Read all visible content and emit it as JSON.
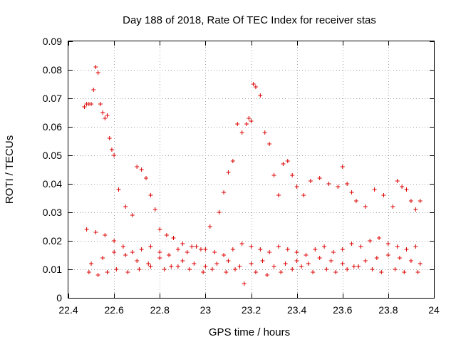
{
  "chart_data": {
    "type": "scatter",
    "title": "Day 188 of 2018, Rate Of TEC Index for receiver stas",
    "xlabel": "GPS time / hours",
    "ylabel": "ROTI / TECUs",
    "xlim": [
      22.4,
      24.0
    ],
    "ylim": [
      0,
      0.09
    ],
    "xticks": [
      22.4,
      22.6,
      22.8,
      23.0,
      23.2,
      23.4,
      23.6,
      23.8,
      24.0
    ],
    "xtick_labels": [
      "22.4",
      "22.6",
      "22.8",
      "23",
      "23.2",
      "23.4",
      "23.6",
      "23.8",
      "24"
    ],
    "yticks": [
      0,
      0.01,
      0.02,
      0.03,
      0.04,
      0.05,
      0.06,
      0.07,
      0.08,
      0.09
    ],
    "ytick_labels": [
      "0",
      "0.01",
      "0.02",
      "0.03",
      "0.04",
      "0.05",
      "0.06",
      "0.07",
      "0.08",
      "0.09"
    ],
    "grid": true,
    "marker": "+",
    "color": "#dd0000",
    "series": [
      {
        "name": "stas",
        "x": [
          22.47,
          22.48,
          22.49,
          22.5,
          22.51,
          22.52,
          22.53,
          22.54,
          22.55,
          22.56,
          22.57,
          22.58,
          22.59,
          22.6,
          22.62,
          22.65,
          22.68,
          22.7,
          22.72,
          22.74,
          22.76,
          22.78,
          22.8,
          22.83,
          22.86,
          22.9,
          22.94,
          22.98,
          23.02,
          23.06,
          23.08,
          23.1,
          23.12,
          23.14,
          23.16,
          23.18,
          23.19,
          23.2,
          23.21,
          23.22,
          23.24,
          23.26,
          23.28,
          23.3,
          23.32,
          23.34,
          23.36,
          23.38,
          23.4,
          23.43,
          23.46,
          23.5,
          23.54,
          23.58,
          23.6,
          23.62,
          23.64,
          23.66,
          23.7,
          23.74,
          23.78,
          23.82,
          23.84,
          23.86,
          23.88,
          23.9,
          23.92,
          23.94,
          22.5,
          22.55,
          22.6,
          22.65,
          22.7,
          22.75,
          22.8,
          22.85,
          22.9,
          22.95,
          23.0,
          23.05,
          23.1,
          23.15,
          23.2,
          23.25,
          23.3,
          23.35,
          23.4,
          23.45,
          23.5,
          23.55,
          23.6,
          23.65,
          23.7,
          23.75,
          23.8,
          23.85,
          23.9,
          23.94,
          22.48,
          22.52,
          22.56,
          22.6,
          22.64,
          22.68,
          22.72,
          22.76,
          22.8,
          22.84,
          22.88,
          22.92,
          22.96,
          23.0,
          23.04,
          23.08,
          23.12,
          23.16,
          23.2,
          23.24,
          23.28,
          23.32,
          23.36,
          23.4,
          23.44,
          23.48,
          23.52,
          23.56,
          23.6,
          23.64,
          23.68,
          23.72,
          23.76,
          23.8,
          23.84,
          23.88,
          23.92,
          22.49,
          22.53,
          22.57,
          22.61,
          22.66,
          22.71,
          22.76,
          22.82,
          22.88,
          22.93,
          22.99,
          23.03,
          23.09,
          23.13,
          23.17,
          23.22,
          23.27,
          23.33,
          23.38,
          23.42,
          23.47,
          23.53,
          23.57,
          23.62,
          23.67,
          23.73,
          23.77,
          23.83,
          23.87,
          23.93
        ],
        "y": [
          0.067,
          0.068,
          0.068,
          0.068,
          0.073,
          0.081,
          0.079,
          0.068,
          0.065,
          0.063,
          0.064,
          0.056,
          0.052,
          0.05,
          0.038,
          0.032,
          0.029,
          0.046,
          0.045,
          0.042,
          0.036,
          0.031,
          0.024,
          0.022,
          0.021,
          0.019,
          0.018,
          0.017,
          0.025,
          0.03,
          0.037,
          0.044,
          0.048,
          0.061,
          0.058,
          0.061,
          0.063,
          0.062,
          0.075,
          0.074,
          0.071,
          0.058,
          0.054,
          0.043,
          0.036,
          0.047,
          0.048,
          0.043,
          0.039,
          0.036,
          0.041,
          0.042,
          0.04,
          0.039,
          0.046,
          0.04,
          0.037,
          0.034,
          0.032,
          0.038,
          0.036,
          0.032,
          0.041,
          0.039,
          0.038,
          0.034,
          0.031,
          0.034,
          0.012,
          0.014,
          0.016,
          0.015,
          0.013,
          0.012,
          0.014,
          0.011,
          0.013,
          0.012,
          0.011,
          0.012,
          0.013,
          0.011,
          0.012,
          0.013,
          0.011,
          0.012,
          0.013,
          0.012,
          0.014,
          0.013,
          0.012,
          0.011,
          0.013,
          0.014,
          0.015,
          0.014,
          0.013,
          0.012,
          0.024,
          0.023,
          0.022,
          0.02,
          0.018,
          0.016,
          0.017,
          0.018,
          0.016,
          0.015,
          0.017,
          0.016,
          0.018,
          0.017,
          0.016,
          0.015,
          0.017,
          0.019,
          0.018,
          0.017,
          0.016,
          0.018,
          0.017,
          0.016,
          0.015,
          0.017,
          0.018,
          0.016,
          0.017,
          0.019,
          0.018,
          0.02,
          0.021,
          0.019,
          0.018,
          0.017,
          0.018,
          0.009,
          0.008,
          0.009,
          0.01,
          0.009,
          0.01,
          0.011,
          0.01,
          0.011,
          0.01,
          0.009,
          0.01,
          0.009,
          0.01,
          0.005,
          0.009,
          0.008,
          0.009,
          0.01,
          0.011,
          0.009,
          0.01,
          0.009,
          0.01,
          0.011,
          0.01,
          0.009,
          0.01,
          0.009,
          0.009
        ]
      }
    ]
  }
}
